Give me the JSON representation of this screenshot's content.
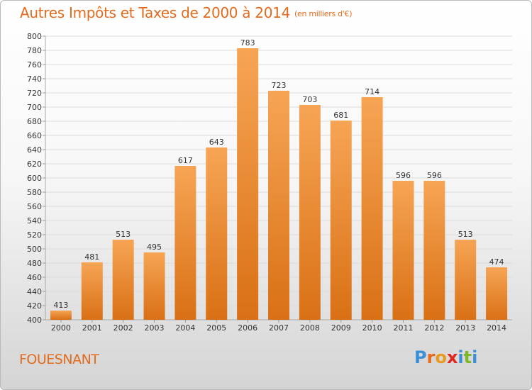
{
  "title": "Autres Impôts et Taxes de 2000 à 2014",
  "title_unit": "(en milliers d'€)",
  "city": "FOUESNANT",
  "logo": {
    "letters": [
      "P",
      "r",
      "o",
      "x",
      "i",
      "t",
      "i"
    ],
    "colors": [
      "#3a8fd6",
      "#e36b1e",
      "#e89a1e",
      "#e2261c",
      "#3a8fd6",
      "#7ab82a",
      "#3a8fd6"
    ]
  },
  "colors": {
    "bar_light": "#f6a555",
    "bar_dark": "#d97015",
    "accent": "#e36b1e"
  },
  "chart_data": {
    "type": "bar",
    "categories": [
      "2000",
      "2001",
      "2002",
      "2003",
      "2004",
      "2005",
      "2006",
      "2007",
      "2008",
      "2009",
      "2010",
      "2011",
      "2012",
      "2013",
      "2014"
    ],
    "values": [
      413,
      481,
      513,
      495,
      617,
      643,
      783,
      723,
      703,
      681,
      714,
      596,
      596,
      513,
      474
    ],
    "ylim": [
      400,
      800
    ],
    "yticks": [
      400,
      420,
      440,
      460,
      480,
      500,
      520,
      540,
      560,
      580,
      600,
      620,
      640,
      660,
      680,
      700,
      720,
      740,
      760,
      780,
      800
    ],
    "grid": true,
    "xlabel": "",
    "ylabel": ""
  }
}
